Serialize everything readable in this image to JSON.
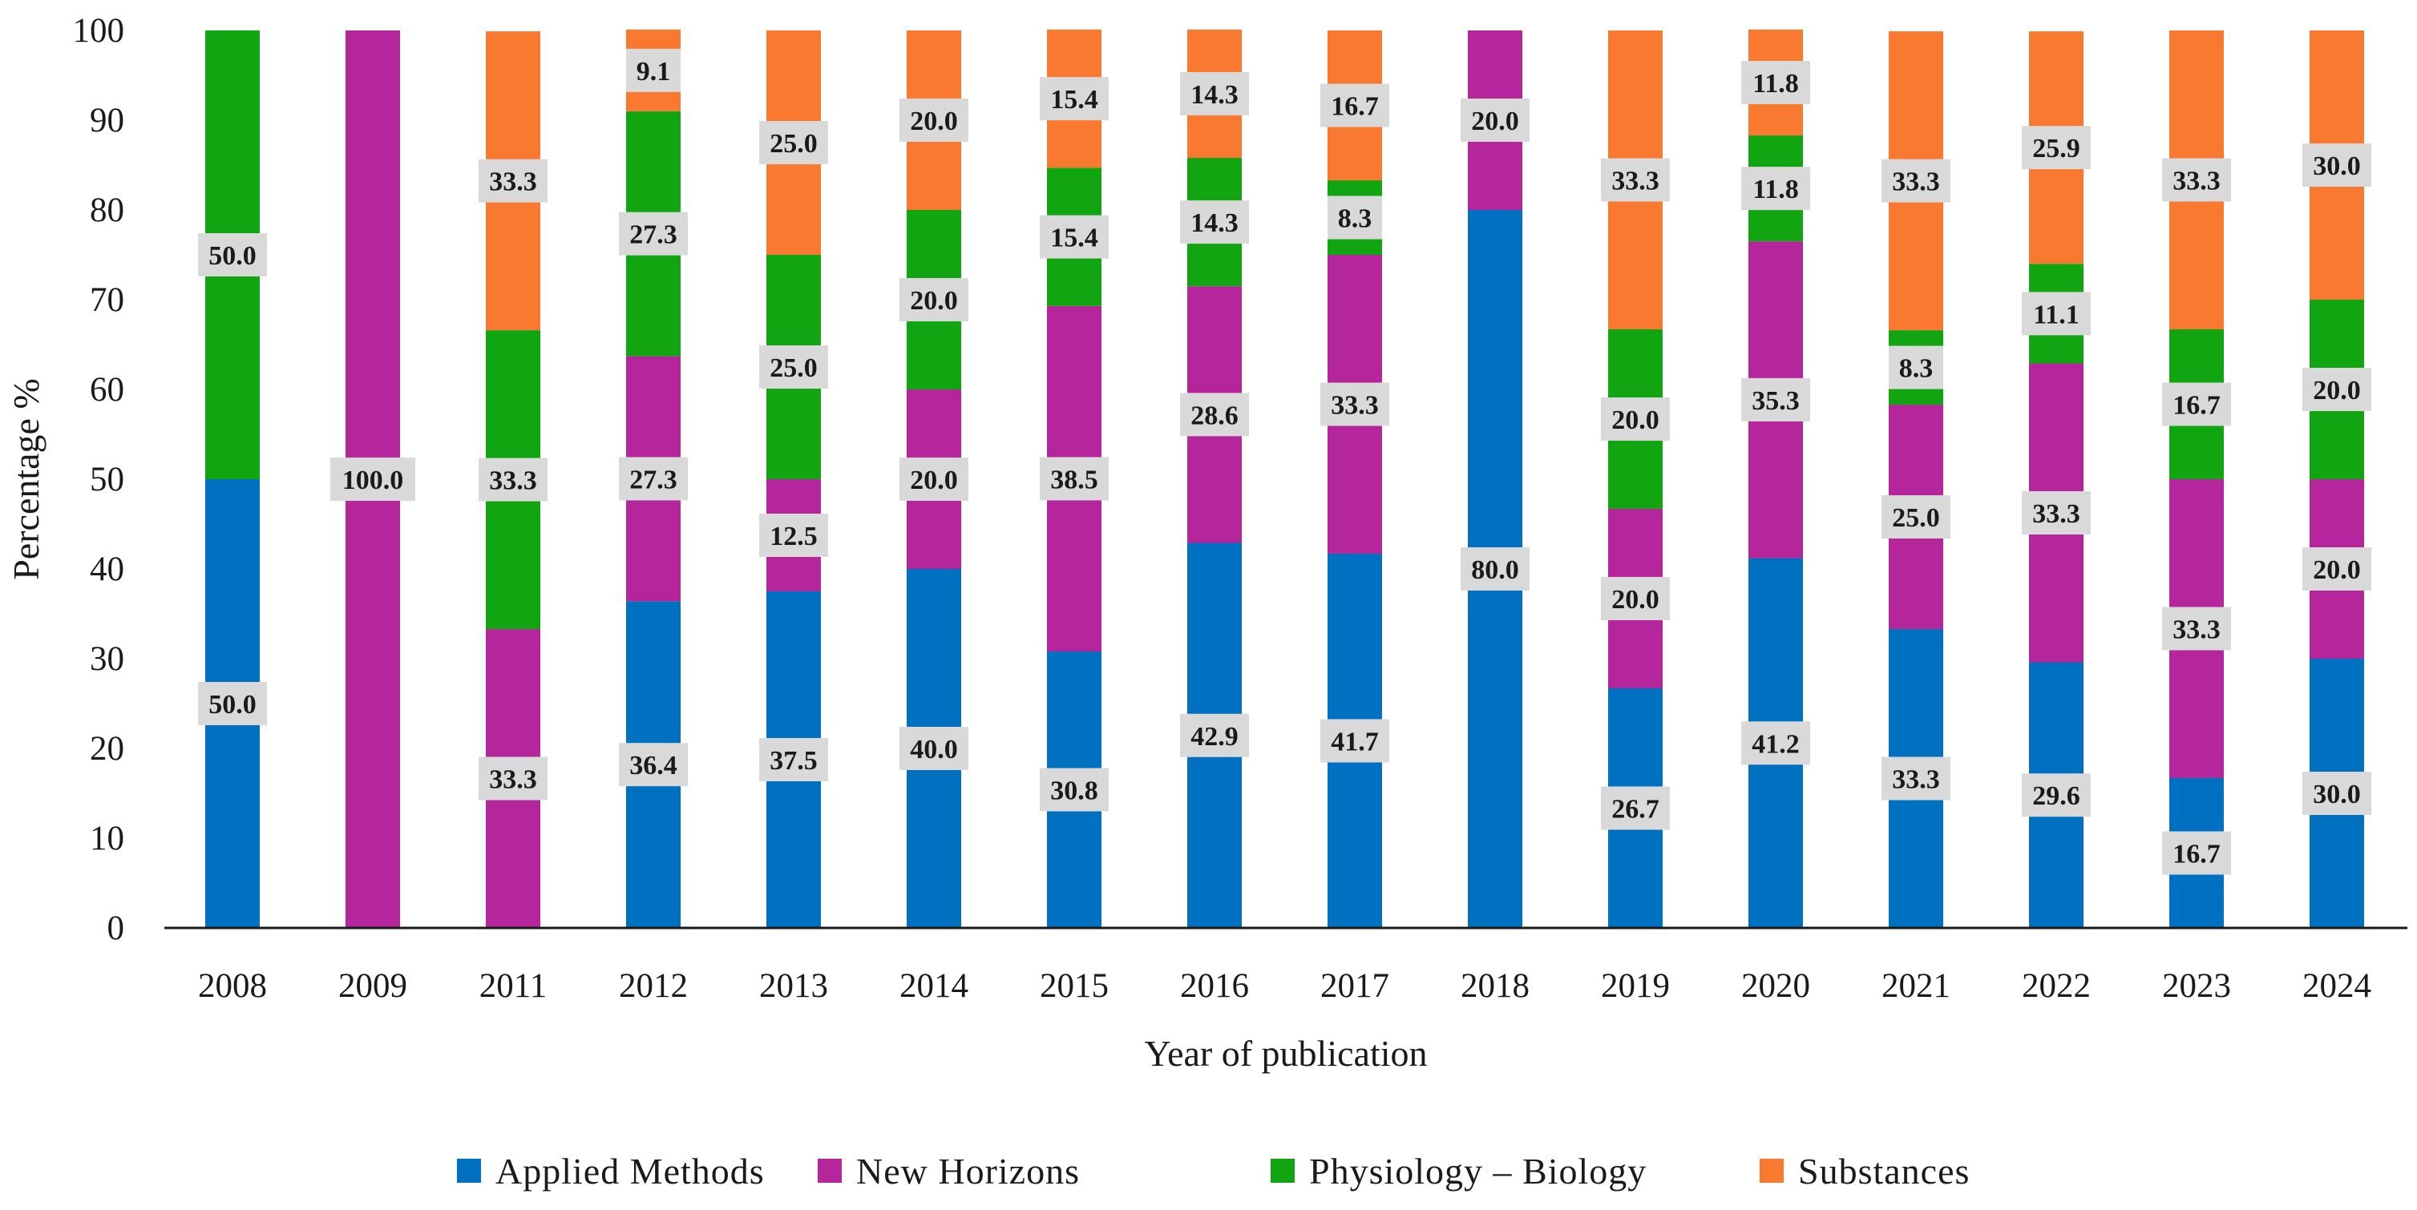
{
  "chart_data": {
    "type": "bar",
    "stacked": true,
    "title": "",
    "xlabel": "Year of publication",
    "ylabel": "Percentage %",
    "ylim": [
      0,
      100
    ],
    "yticks": [
      "0",
      "10",
      "20",
      "30",
      "40",
      "50",
      "60",
      "70",
      "80",
      "90",
      "100"
    ],
    "grid": false,
    "legend_position": "bottom",
    "categories": [
      "2008",
      "2009",
      "2011",
      "2012",
      "2013",
      "2014",
      "2015",
      "2016",
      "2017",
      "2018",
      "2019",
      "2020",
      "2021",
      "2022",
      "2023",
      "2024"
    ],
    "series": [
      {
        "name": "Applied Methods",
        "color": "#0070c0",
        "values": [
          50.0,
          0,
          0,
          36.4,
          37.5,
          40.0,
          30.8,
          42.9,
          41.7,
          80.0,
          26.7,
          41.2,
          33.3,
          29.6,
          16.7,
          30.0
        ],
        "labels": [
          "50.0",
          "",
          "",
          "36.4",
          "37.5",
          "40.0",
          "30.8",
          "42.9",
          "41.7",
          "80.0",
          "26.7",
          "41.2",
          "33.3",
          "29.6",
          "16.7",
          "30.0"
        ]
      },
      {
        "name": "New Horizons",
        "color": "#b5259b",
        "values": [
          0,
          100.0,
          33.3,
          27.3,
          12.5,
          20.0,
          38.5,
          28.6,
          33.3,
          20.0,
          20.0,
          35.3,
          25.0,
          33.3,
          33.3,
          20.0
        ],
        "labels": [
          "",
          "100.0",
          "33.3",
          "27.3",
          "12.5",
          "20.0",
          "38.5",
          "28.6",
          "33.3",
          "20.0",
          "20.0",
          "35.3",
          "25.0",
          "33.3",
          "33.3",
          "20.0"
        ]
      },
      {
        "name": "Physiology – Biology",
        "color": "#12a512",
        "values": [
          50.0,
          0,
          33.3,
          27.3,
          25.0,
          20.0,
          15.4,
          14.3,
          8.3,
          0,
          20.0,
          11.8,
          8.3,
          11.1,
          16.7,
          20.0
        ],
        "labels": [
          "50.0",
          "",
          "33.3",
          "27.3",
          "25.0",
          "20.0",
          "15.4",
          "14.3",
          "8.3",
          "",
          "20.0",
          "11.8",
          "8.3",
          "11.1",
          "16.7",
          "20.0"
        ]
      },
      {
        "name": "Substances",
        "color": "#f8792f",
        "values": [
          0,
          0,
          33.3,
          9.1,
          25.0,
          20.0,
          15.4,
          14.3,
          16.7,
          0,
          33.3,
          11.8,
          33.3,
          25.9,
          33.3,
          30.0
        ],
        "labels": [
          "",
          "",
          "33.3",
          "9.1",
          "25.0",
          "20.0",
          "15.4",
          "14.3",
          "16.7",
          "",
          "33.3",
          "11.8",
          "33.3",
          "25.9",
          "33.3",
          "30.0"
        ]
      }
    ]
  }
}
